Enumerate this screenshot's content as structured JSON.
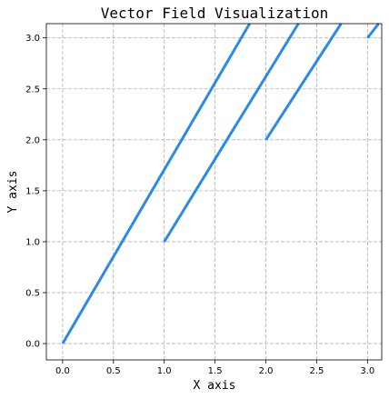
{
  "chart_data": {
    "type": "line",
    "title": "Vector Field Visualization",
    "xlabel": "X axis",
    "ylabel": "Y axis",
    "xlim": [
      -0.16,
      3.14
    ],
    "ylim": [
      -0.16,
      3.14
    ],
    "xticks": [
      0.0,
      0.5,
      1.0,
      1.5,
      2.0,
      2.5,
      3.0
    ],
    "yticks": [
      0.0,
      0.5,
      1.0,
      1.5,
      2.0,
      2.5,
      3.0
    ],
    "x_tick_labels": [
      "0.0",
      "0.5",
      "1.0",
      "1.5",
      "2.0",
      "2.5",
      "3.0"
    ],
    "y_tick_labels": [
      "0.0",
      "0.5",
      "1.0",
      "1.5",
      "2.0",
      "2.5",
      "3.0"
    ],
    "grid": true,
    "series_color": "#2a8ae8",
    "series": [
      {
        "x": [
          0.0,
          1.84
        ],
        "y": [
          0.0,
          3.14
        ]
      },
      {
        "x": [
          1.0,
          2.32
        ],
        "y": [
          1.0,
          3.14
        ]
      },
      {
        "x": [
          2.0,
          2.74
        ],
        "y": [
          2.0,
          3.14
        ]
      },
      {
        "x": [
          3.0,
          3.11
        ],
        "y": [
          3.0,
          3.14
        ]
      }
    ]
  }
}
